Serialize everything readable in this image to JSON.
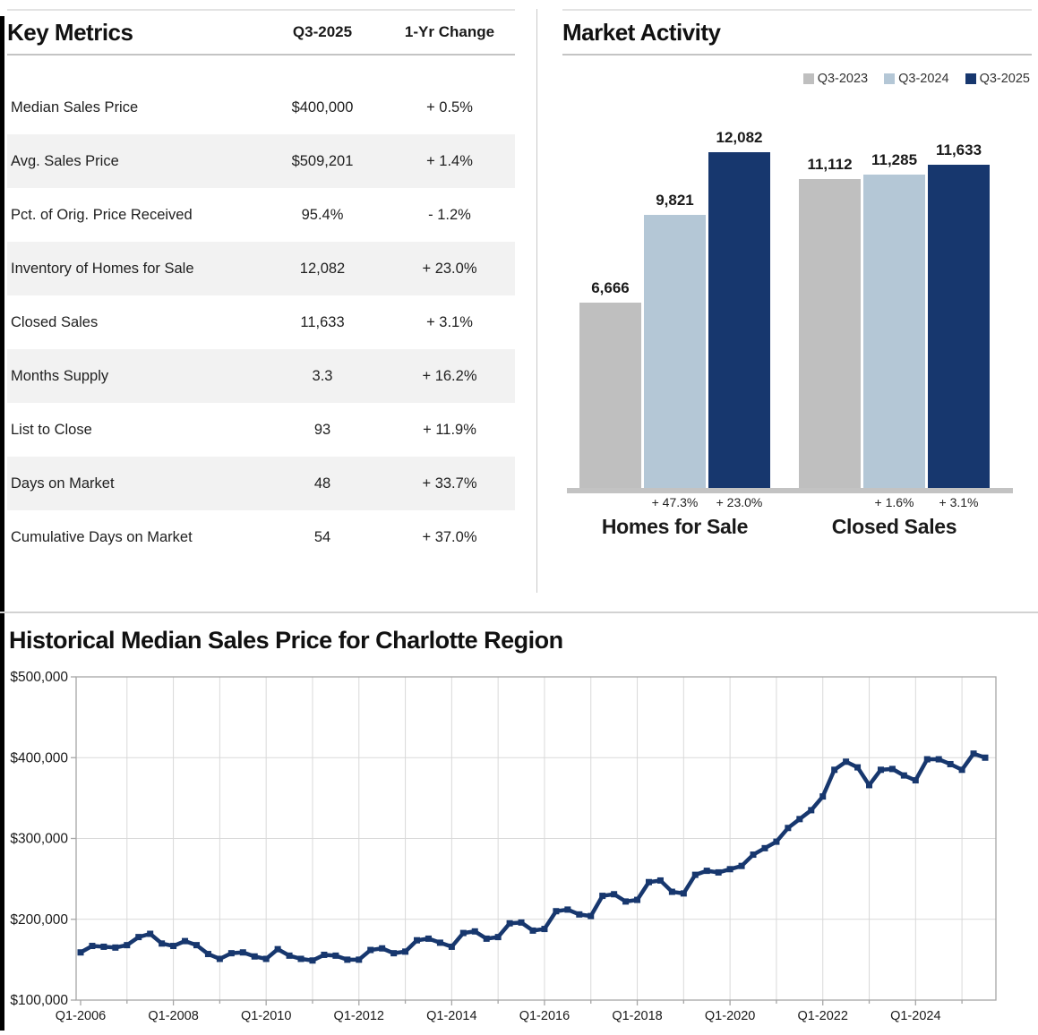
{
  "key_metrics": {
    "title": "Key Metrics",
    "col_quarter": "Q3-2025",
    "col_change": "1-Yr Change",
    "rows": [
      {
        "label": "Median Sales Price",
        "value": "$400,000",
        "change": "+ 0.5%"
      },
      {
        "label": "Avg. Sales Price",
        "value": "$509,201",
        "change": "+ 1.4%"
      },
      {
        "label": "Pct. of Orig. Price Received",
        "value": "95.4%",
        "change": "- 1.2%"
      },
      {
        "label": "Inventory of Homes for Sale",
        "value": "12,082",
        "change": "+ 23.0%"
      },
      {
        "label": "Closed Sales",
        "value": "11,633",
        "change": "+ 3.1%"
      },
      {
        "label": "Months Supply",
        "value": "3.3",
        "change": "+ 16.2%"
      },
      {
        "label": "List to Close",
        "value": "93",
        "change": "+ 11.9%"
      },
      {
        "label": "Days on Market",
        "value": "48",
        "change": "+ 33.7%"
      },
      {
        "label": "Cumulative Days on Market",
        "value": "54",
        "change": "+ 37.0%"
      }
    ]
  },
  "colors": {
    "q3_2023": "#bfbfbf",
    "q3_2024": "#b4c7d6",
    "q3_2025": "#17376e",
    "grid": "#d9d9d9",
    "frame": "#a6a6a6",
    "row_shade": "#f2f2f2"
  },
  "chart_data": [
    {
      "id": "market_activity",
      "type": "bar",
      "title": "Market Activity",
      "legend": [
        "Q3-2023",
        "Q3-2024",
        "Q3-2025"
      ],
      "legend_position": "top-right",
      "series_colors": [
        "#bfbfbf",
        "#b4c7d6",
        "#17376e"
      ],
      "categories": [
        "Homes for Sale",
        "Closed Sales"
      ],
      "series": [
        {
          "name": "Q3-2023",
          "values": [
            6666,
            11112
          ],
          "value_labels": [
            "6,666",
            "11,112"
          ]
        },
        {
          "name": "Q3-2024",
          "values": [
            9821,
            11285
          ],
          "value_labels": [
            "9,821",
            "11,285"
          ]
        },
        {
          "name": "Q3-2025",
          "values": [
            12082,
            11633
          ],
          "value_labels": [
            "12,082",
            "11,633"
          ]
        }
      ],
      "pct_changes": [
        [
          "",
          "+ 47.3%",
          "+ 23.0%"
        ],
        [
          "",
          "+ 1.6%",
          "+ 3.1%"
        ]
      ],
      "ylim": [
        0,
        12082
      ]
    },
    {
      "id": "historical_median_sales_price",
      "type": "line",
      "title": "Historical Median Sales Price for Charlotte Region",
      "x_start": "Q1-2006",
      "x_end": "Q3-2025",
      "x_interval": "quarterly",
      "x_tick_labels": [
        "Q1-2006",
        "Q1-2008",
        "Q1-2010",
        "Q1-2012",
        "Q1-2014",
        "Q1-2016",
        "Q1-2018",
        "Q1-2020",
        "Q1-2022",
        "Q1-2024"
      ],
      "y_tick_labels": [
        "$100,000",
        "$200,000",
        "$300,000",
        "$400,000",
        "$500,000"
      ],
      "ylim": [
        100000,
        500000
      ],
      "grid": true,
      "line_color": "#17376e",
      "values": [
        159000,
        167000,
        166000,
        165000,
        168000,
        178000,
        182000,
        170000,
        167000,
        173000,
        168000,
        157000,
        151000,
        158000,
        159000,
        154000,
        151000,
        163000,
        155000,
        151000,
        149000,
        156000,
        155000,
        150000,
        150000,
        162000,
        164000,
        158000,
        160000,
        174000,
        176000,
        171000,
        166000,
        183000,
        185000,
        176000,
        178000,
        195000,
        196000,
        186000,
        188000,
        210000,
        212000,
        206000,
        204000,
        229000,
        231000,
        222000,
        224000,
        246000,
        248000,
        234000,
        232000,
        255000,
        260000,
        258000,
        262000,
        266000,
        280000,
        288000,
        296000,
        313000,
        324000,
        335000,
        352000,
        385000,
        395000,
        388000,
        366000,
        385000,
        386000,
        378000,
        372000,
        398000,
        398000,
        392000,
        385000,
        405000,
        400000
      ]
    }
  ]
}
